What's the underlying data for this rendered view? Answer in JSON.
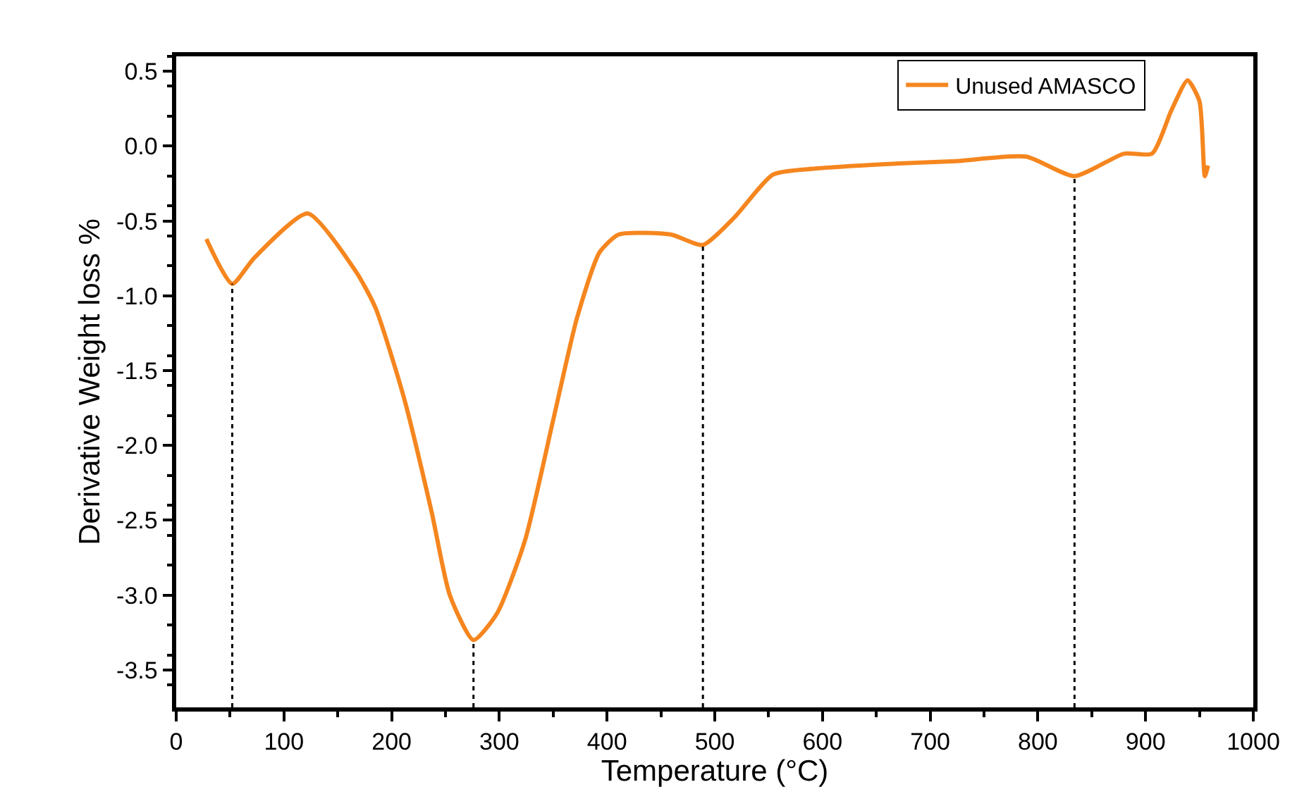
{
  "chart_data": {
    "type": "line",
    "xlabel": "Temperature (°C)",
    "ylabel": "Derivative Weight loss %",
    "series": [
      {
        "name": "Unused AMASCO",
        "color": "#f5861f",
        "x": [
          28,
          52,
          72,
          122,
          167,
          185,
          211,
          237,
          254,
          276,
          298,
          324,
          350,
          372,
          393,
          411,
          459,
          489,
          519,
          554,
          593,
          658,
          724,
          789,
          834,
          880,
          906,
          924,
          939,
          950,
          955,
          958
        ],
        "values": [
          -0.62,
          -0.92,
          -0.75,
          -0.45,
          -0.84,
          -1.08,
          -1.67,
          -2.44,
          -3.0,
          -3.3,
          -3.12,
          -2.63,
          -1.83,
          -1.15,
          -0.71,
          -0.59,
          -0.59,
          -0.66,
          -0.47,
          -0.19,
          -0.15,
          -0.12,
          -0.1,
          -0.07,
          -0.2,
          -0.05,
          -0.05,
          0.24,
          0.44,
          0.3,
          -0.2,
          -0.13
        ]
      }
    ],
    "ref_lines": [
      {
        "axis": "x",
        "value": 52,
        "color": "#000000",
        "line_style": "dotted"
      },
      {
        "axis": "x",
        "value": 276,
        "color": "#000000",
        "line_style": "dotted"
      },
      {
        "axis": "x",
        "value": 489,
        "color": "#000000",
        "line_style": "dotted"
      },
      {
        "axis": "x",
        "value": 834,
        "color": "#000000",
        "line_style": "dotted"
      }
    ],
    "xlim": [
      0,
      1000
    ],
    "xticks": [
      0,
      100,
      200,
      300,
      400,
      500,
      600,
      700,
      800,
      900,
      1000
    ],
    "ylim": [
      -3.75,
      0.6
    ],
    "yticks": [
      0.5,
      {
        "value": 0,
        "label": "0.0"
      },
      -0.5,
      {
        "value": -1,
        "label": "-1.0"
      },
      -1.5,
      {
        "value": -2,
        "label": "-2.0"
      },
      -2.5,
      {
        "value": -3,
        "label": "-3.0"
      },
      -3.5
    ],
    "legend": "top right",
    "marker": "none",
    "line_style": "solid"
  }
}
